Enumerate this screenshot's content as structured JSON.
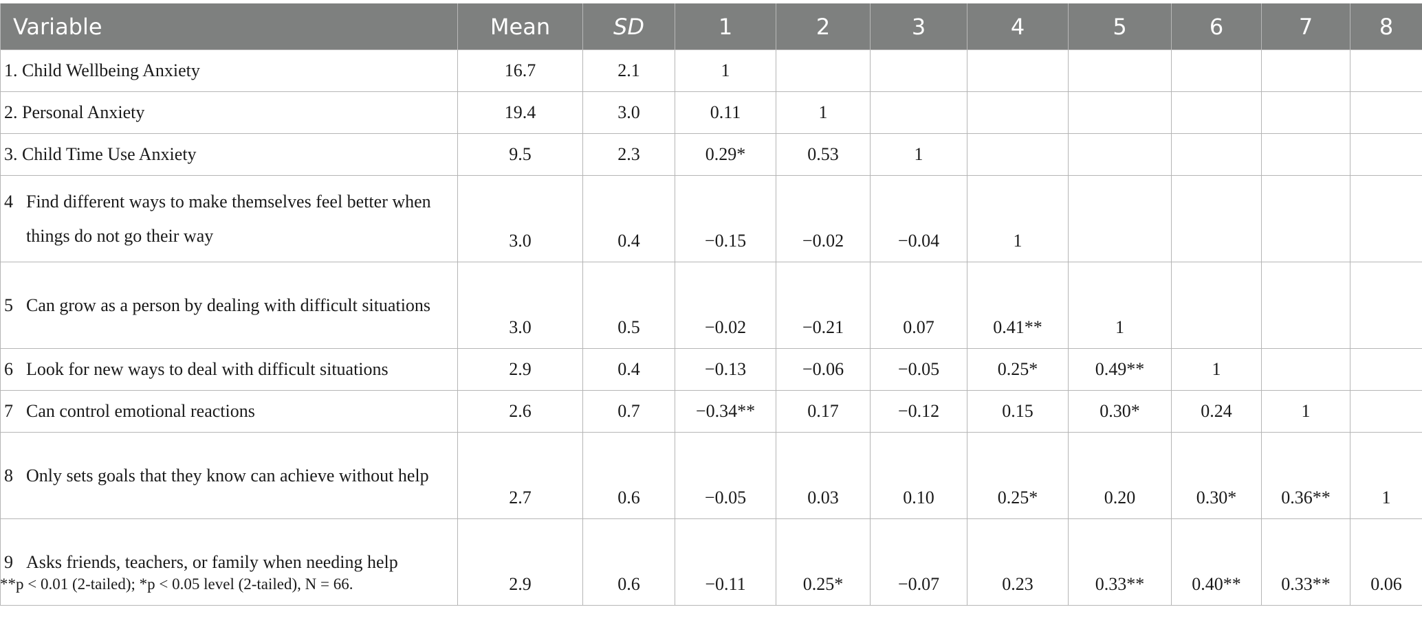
{
  "headers": [
    "Variable",
    "Mean",
    "SD",
    "1",
    "2",
    "3",
    "4",
    "5",
    "6",
    "7",
    "8"
  ],
  "rows": [
    {
      "num": "",
      "variable": "1. Child Wellbeing Anxiety",
      "mean": "16.7",
      "sd": "2.1",
      "c1": "1",
      "c2": "",
      "c3": "",
      "c4": "",
      "c5": "",
      "c6": "",
      "c7": "",
      "c8": ""
    },
    {
      "num": "",
      "variable": "2. Personal Anxiety",
      "mean": "19.4",
      "sd": "3.0",
      "c1": "0.11",
      "c2": "1",
      "c3": "",
      "c4": "",
      "c5": "",
      "c6": "",
      "c7": "",
      "c8": ""
    },
    {
      "num": "",
      "variable": "3. Child Time Use Anxiety",
      "mean": "9.5",
      "sd": "2.3",
      "c1": "0.29*",
      "c2": "0.53",
      "c3": "1",
      "c4": "",
      "c5": "",
      "c6": "",
      "c7": "",
      "c8": ""
    },
    {
      "num": "4",
      "variable": "Find different ways to make themselves feel better when things do not go their way",
      "mean": "3.0",
      "sd": "0.4",
      "c1": "−0.15",
      "c2": "−0.02",
      "c3": "−0.04",
      "c4": "1",
      "c5": "",
      "c6": "",
      "c7": "",
      "c8": ""
    },
    {
      "num": "5",
      "variable": "Can grow as a person by dealing with difficult situations",
      "mean": "3.0",
      "sd": "0.5",
      "c1": "−0.02",
      "c2": "−0.21",
      "c3": "0.07",
      "c4": "0.41**",
      "c5": "1",
      "c6": "",
      "c7": "",
      "c8": ""
    },
    {
      "num": "6",
      "variable": "Look for new ways to deal with difficult situations",
      "mean": "2.9",
      "sd": "0.4",
      "c1": "−0.13",
      "c2": "−0.06",
      "c3": "−0.05",
      "c4": "0.25*",
      "c5": "0.49**",
      "c6": "1",
      "c7": "",
      "c8": ""
    },
    {
      "num": "7",
      "variable": "Can control emotional reactions",
      "mean": "2.6",
      "sd": "0.7",
      "c1": "−0.34**",
      "c2": "0.17",
      "c3": "−0.12",
      "c4": "0.15",
      "c5": "0.30*",
      "c6": "0.24",
      "c7": "1",
      "c8": ""
    },
    {
      "num": "8",
      "variable": "Only sets goals that they know can achieve without help",
      "mean": "2.7",
      "sd": "0.6",
      "c1": "−0.05",
      "c2": "0.03",
      "c3": "0.10",
      "c4": "0.25*",
      "c5": "0.20",
      "c6": "0.30*",
      "c7": "0.36**",
      "c8": "1"
    },
    {
      "num": "9",
      "variable": "Asks friends, teachers, or family when needing help",
      "mean": "2.9",
      "sd": "0.6",
      "c1": "−0.11",
      "c2": "0.25*",
      "c3": "−0.07",
      "c4": "0.23",
      "c5": "0.33**",
      "c6": "0.40**",
      "c7": "0.33**",
      "c8": "0.06"
    }
  ],
  "footnote": "**p < 0.01 (2-tailed); *p < 0.05 level (2-tailed), N = 66."
}
